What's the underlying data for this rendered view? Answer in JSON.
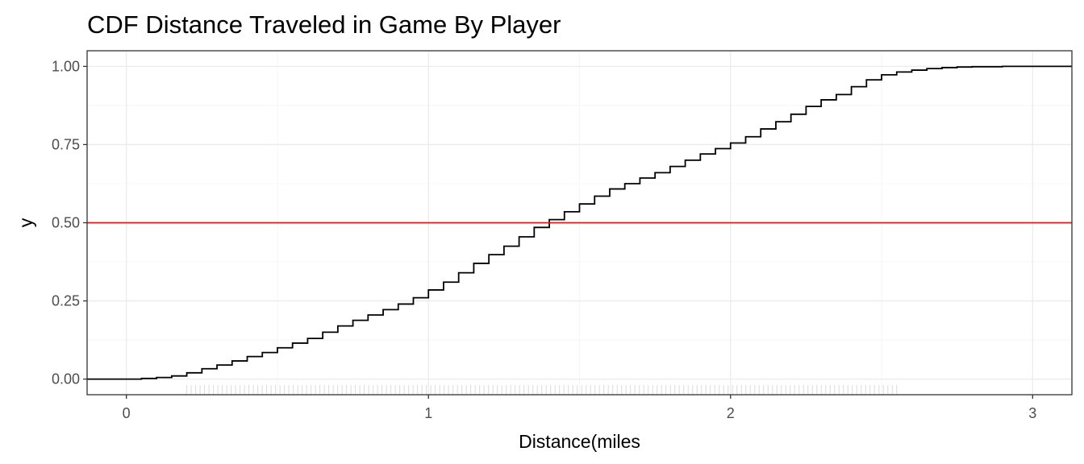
{
  "chart_data": {
    "type": "line",
    "title": "CDF Distance Traveled in Game By Player",
    "xlabel": "Distance(miles",
    "ylabel": "y",
    "xlim": [
      -0.13,
      3.13
    ],
    "ylim": [
      -0.05,
      1.05
    ],
    "x_ticks": [
      0,
      1,
      2,
      3
    ],
    "x_tick_labels": [
      "0",
      "1",
      "2",
      "3"
    ],
    "y_ticks": [
      0,
      0.25,
      0.5,
      0.75,
      1
    ],
    "y_tick_labels": [
      "0.00",
      "0.25",
      "0.50",
      "0.75",
      "1.00"
    ],
    "grid": true,
    "legend": "none",
    "series": [
      {
        "color": "#000000",
        "step": true,
        "x": [
          -0.13,
          0.0,
          0.05,
          0.1,
          0.15,
          0.2,
          0.25,
          0.3,
          0.35,
          0.4,
          0.45,
          0.5,
          0.55,
          0.6,
          0.65,
          0.7,
          0.75,
          0.8,
          0.85,
          0.9,
          0.95,
          1.0,
          1.05,
          1.1,
          1.15,
          1.2,
          1.25,
          1.3,
          1.35,
          1.4,
          1.45,
          1.5,
          1.55,
          1.6,
          1.65,
          1.7,
          1.75,
          1.8,
          1.85,
          1.9,
          1.95,
          2.0,
          2.05,
          2.1,
          2.15,
          2.2,
          2.25,
          2.3,
          2.35,
          2.4,
          2.45,
          2.5,
          2.55,
          2.6,
          2.65,
          2.7,
          2.75,
          2.8,
          2.9,
          3.0,
          3.13
        ],
        "y": [
          0.0,
          0.0,
          0.002,
          0.005,
          0.01,
          0.02,
          0.033,
          0.045,
          0.058,
          0.072,
          0.085,
          0.1,
          0.115,
          0.13,
          0.15,
          0.17,
          0.188,
          0.205,
          0.222,
          0.24,
          0.26,
          0.285,
          0.31,
          0.34,
          0.37,
          0.398,
          0.425,
          0.455,
          0.485,
          0.51,
          0.535,
          0.56,
          0.585,
          0.608,
          0.625,
          0.643,
          0.66,
          0.68,
          0.7,
          0.72,
          0.737,
          0.755,
          0.775,
          0.8,
          0.823,
          0.847,
          0.872,
          0.893,
          0.91,
          0.935,
          0.957,
          0.973,
          0.982,
          0.988,
          0.993,
          0.996,
          0.998,
          0.999,
          1.0,
          1.0,
          1.0
        ]
      }
    ],
    "reference_lines": [
      {
        "orientation": "horizontal",
        "y": 0.5,
        "color": "#e41a1c"
      }
    ],
    "rug": {
      "axis": "x",
      "from": 0.2,
      "to": 2.55,
      "color": "#cccccc"
    }
  }
}
